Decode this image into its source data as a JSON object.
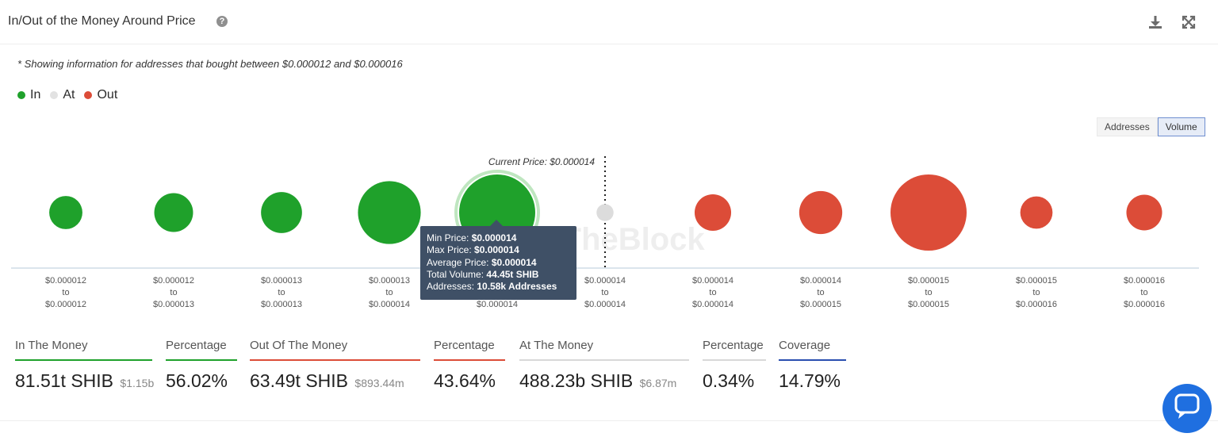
{
  "header": {
    "title": "In/Out of the Money Around Price",
    "help_glyph": "?"
  },
  "note": "* Showing information for addresses that bought between $0.000012 and $0.000016",
  "legend": [
    {
      "label": "In",
      "color": "#1fa12b"
    },
    {
      "label": "At",
      "color": "#e2e2e2"
    },
    {
      "label": "Out",
      "color": "#dc4c38"
    }
  ],
  "toggle": {
    "addresses_label": "Addresses",
    "volume_label": "Volume",
    "active": "Volume"
  },
  "watermark": "IntoTheBlock",
  "chart_data": {
    "type": "scatter",
    "encoding": "bubble size = total volume",
    "current_price_label": "Current Price: $0.000014",
    "current_price_after_index": 5,
    "categories": [
      {
        "from": "$0.000012",
        "to": "$0.000012",
        "status": "in"
      },
      {
        "from": "$0.000012",
        "to": "$0.000013",
        "status": "in"
      },
      {
        "from": "$0.000013",
        "to": "$0.000013",
        "status": "in"
      },
      {
        "from": "$0.000013",
        "to": "$0.000014",
        "status": "in"
      },
      {
        "from": "$0.000014",
        "to": "$0.000014",
        "status": "in"
      },
      {
        "from": "$0.000014",
        "to": "$0.000014",
        "status": "at"
      },
      {
        "from": "$0.000014",
        "to": "$0.000014",
        "status": "out"
      },
      {
        "from": "$0.000014",
        "to": "$0.000015",
        "status": "out"
      },
      {
        "from": "$0.000015",
        "to": "$0.000015",
        "status": "out"
      },
      {
        "from": "$0.000015",
        "to": "$0.000016",
        "status": "out"
      },
      {
        "from": "$0.000016",
        "to": "$0.000016",
        "status": "out"
      }
    ],
    "relative_volume": [
      0.19,
      0.26,
      0.29,
      0.68,
      1.0,
      0.05,
      0.23,
      0.32,
      1.0,
      0.18,
      0.22
    ],
    "tooltip": {
      "index": 4,
      "min_price_label": "Min Price:",
      "min_price": "$0.000014",
      "max_price_label": "Max Price:",
      "max_price": "$0.000014",
      "avg_price_label": "Average Price:",
      "avg_price": "$0.000014",
      "total_volume_label": "Total Volume:",
      "total_volume": "44.45t SHIB",
      "addresses_label": "Addresses:",
      "addresses": "10.58k Addresses"
    }
  },
  "range_to": "to",
  "stats": {
    "in_money": {
      "label": "In The Money",
      "value": "81.51t SHIB",
      "sub": "$1.15b",
      "color": "#1fa12b"
    },
    "in_pct": {
      "label": "Percentage",
      "value": "56.02%",
      "color": "#1fa12b"
    },
    "out_money": {
      "label": "Out Of The Money",
      "value": "63.49t SHIB",
      "sub": "$893.44m",
      "color": "#dc4c38"
    },
    "out_pct": {
      "label": "Percentage",
      "value": "43.64%",
      "color": "#dc4c38"
    },
    "at_money": {
      "label": "At The Money",
      "value": "488.23b SHIB",
      "sub": "$6.87m",
      "color": "#d8d8d8"
    },
    "at_pct": {
      "label": "Percentage",
      "value": "0.34%",
      "color": "#d8d8d8"
    },
    "coverage": {
      "label": "Coverage",
      "value": "14.79%",
      "color": "#2a4fb0"
    }
  }
}
